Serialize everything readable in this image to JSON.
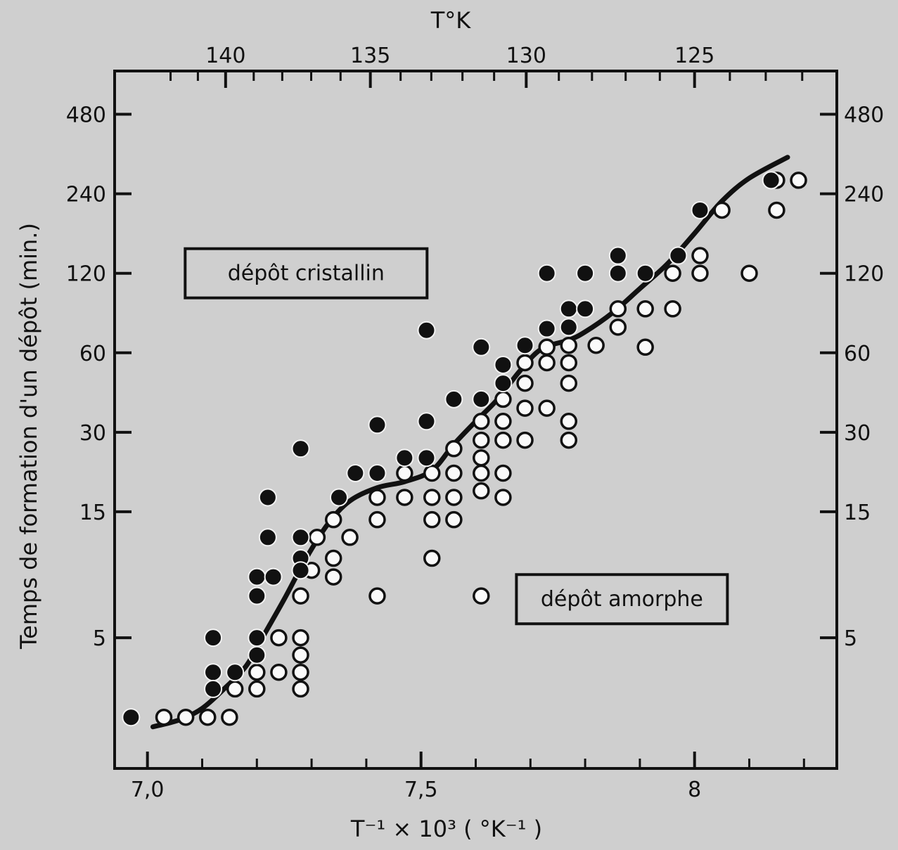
{
  "chart_data": {
    "type": "scatter",
    "x_scale": "linear",
    "y_scale": "log",
    "xlabel": "T⁻¹ × 10³ ( °K⁻¹ )",
    "ylabel": "Temps de formation d'un dépôt  (min.)",
    "top_label": "T°K",
    "xlim": [
      6.94,
      8.26
    ],
    "ylim": [
      1.6,
      700
    ],
    "x_ticks": [
      {
        "v": 7.0,
        "label": "7,0"
      },
      {
        "v": 7.5,
        "label": "7,5"
      },
      {
        "v": 8.0,
        "label": "8"
      }
    ],
    "x_minor_ticks": [
      7.1,
      7.2,
      7.3,
      7.4,
      7.6,
      7.7,
      7.8,
      7.9,
      8.1,
      8.2
    ],
    "top_ticks": [
      {
        "v": 140,
        "label": "140"
      },
      {
        "v": 135,
        "label": "135"
      },
      {
        "v": 130,
        "label": "130"
      },
      {
        "v": 125,
        "label": "125"
      }
    ],
    "y_ticks": [
      {
        "v": 480,
        "label": "480"
      },
      {
        "v": 240,
        "label": "240"
      },
      {
        "v": 120,
        "label": "120"
      },
      {
        "v": 60,
        "label": "60"
      },
      {
        "v": 30,
        "label": "30"
      },
      {
        "v": 15,
        "label": "15"
      },
      {
        "v": 5,
        "label": "5"
      }
    ],
    "annotations": [
      {
        "text": "dépôt cristallin",
        "x": 7.29,
        "y": 120
      },
      {
        "text": "dépôt amorphe",
        "x": 8.06,
        "y": 7
      }
    ],
    "grid": false,
    "series": [
      {
        "marker": "filled",
        "points": [
          [
            6.97,
            2.5
          ],
          [
            7.12,
            5.0
          ],
          [
            7.12,
            3.7
          ],
          [
            7.12,
            3.2
          ],
          [
            7.16,
            3.7
          ],
          [
            7.2,
            8.5
          ],
          [
            7.2,
            7.2
          ],
          [
            7.2,
            5.0
          ],
          [
            7.2,
            4.3
          ],
          [
            7.22,
            17
          ],
          [
            7.22,
            12
          ],
          [
            7.23,
            8.5
          ],
          [
            7.28,
            26
          ],
          [
            7.28,
            12
          ],
          [
            7.28,
            10
          ],
          [
            7.28,
            9.0
          ],
          [
            7.35,
            17
          ],
          [
            7.38,
            21
          ],
          [
            7.42,
            32
          ],
          [
            7.42,
            21
          ],
          [
            7.47,
            24
          ],
          [
            7.51,
            73
          ],
          [
            7.51,
            33
          ],
          [
            7.51,
            24
          ],
          [
            7.56,
            40
          ],
          [
            7.61,
            63
          ],
          [
            7.61,
            40
          ],
          [
            7.65,
            54
          ],
          [
            7.65,
            46
          ],
          [
            7.69,
            64
          ],
          [
            7.73,
            120
          ],
          [
            7.73,
            74
          ],
          [
            7.77,
            88
          ],
          [
            7.77,
            75
          ],
          [
            7.8,
            88
          ],
          [
            7.8,
            120
          ],
          [
            7.86,
            140
          ],
          [
            7.86,
            120
          ],
          [
            7.91,
            120
          ],
          [
            7.97,
            140
          ],
          [
            8.01,
            208
          ],
          [
            8.14,
            270
          ]
        ]
      },
      {
        "marker": "open",
        "points": [
          [
            7.03,
            2.5
          ],
          [
            7.07,
            2.5
          ],
          [
            7.11,
            2.5
          ],
          [
            7.15,
            2.5
          ],
          [
            7.16,
            3.2
          ],
          [
            7.2,
            3.2
          ],
          [
            7.2,
            3.7
          ],
          [
            7.24,
            5.0
          ],
          [
            7.24,
            3.7
          ],
          [
            7.28,
            5.0
          ],
          [
            7.28,
            4.3
          ],
          [
            7.28,
            3.7
          ],
          [
            7.28,
            3.2
          ],
          [
            7.28,
            7.2
          ],
          [
            7.31,
            12
          ],
          [
            7.3,
            9.0
          ],
          [
            7.34,
            14
          ],
          [
            7.34,
            10
          ],
          [
            7.34,
            8.5
          ],
          [
            7.37,
            12
          ],
          [
            7.42,
            17
          ],
          [
            7.42,
            14
          ],
          [
            7.42,
            7.2
          ],
          [
            7.47,
            21
          ],
          [
            7.47,
            17
          ],
          [
            7.52,
            21
          ],
          [
            7.52,
            17
          ],
          [
            7.52,
            14
          ],
          [
            7.52,
            10
          ],
          [
            7.56,
            21
          ],
          [
            7.56,
            17
          ],
          [
            7.56,
            14
          ],
          [
            7.56,
            26
          ],
          [
            7.61,
            21
          ],
          [
            7.61,
            18
          ],
          [
            7.61,
            24
          ],
          [
            7.61,
            28
          ],
          [
            7.61,
            33
          ],
          [
            7.61,
            7.2
          ],
          [
            7.65,
            21
          ],
          [
            7.65,
            17
          ],
          [
            7.65,
            28
          ],
          [
            7.65,
            33
          ],
          [
            7.65,
            40
          ],
          [
            7.69,
            55
          ],
          [
            7.69,
            46
          ],
          [
            7.69,
            37
          ],
          [
            7.69,
            28
          ],
          [
            7.73,
            63
          ],
          [
            7.73,
            55
          ],
          [
            7.73,
            37
          ],
          [
            7.77,
            55
          ],
          [
            7.77,
            46
          ],
          [
            7.77,
            33
          ],
          [
            7.77,
            28
          ],
          [
            7.77,
            64
          ],
          [
            7.82,
            64
          ],
          [
            7.86,
            75
          ],
          [
            7.86,
            88
          ],
          [
            7.91,
            88
          ],
          [
            7.91,
            63
          ],
          [
            7.96,
            120
          ],
          [
            7.96,
            88
          ],
          [
            8.01,
            140
          ],
          [
            8.01,
            120
          ],
          [
            8.05,
            208
          ],
          [
            8.1,
            120
          ],
          [
            8.15,
            270
          ],
          [
            8.15,
            208
          ],
          [
            8.19,
            270
          ]
        ]
      }
    ],
    "fit_curve": [
      [
        7.01,
        2.3
      ],
      [
        7.06,
        2.45
      ],
      [
        7.1,
        2.7
      ],
      [
        7.14,
        3.2
      ],
      [
        7.18,
        3.9
      ],
      [
        7.21,
        5.0
      ],
      [
        7.25,
        7.0
      ],
      [
        7.29,
        10
      ],
      [
        7.33,
        13.5
      ],
      [
        7.37,
        16.5
      ],
      [
        7.42,
        18.5
      ],
      [
        7.47,
        19.5
      ],
      [
        7.52,
        21.5
      ],
      [
        7.56,
        27
      ],
      [
        7.6,
        33
      ],
      [
        7.64,
        40
      ],
      [
        7.68,
        51
      ],
      [
        7.72,
        62
      ],
      [
        7.77,
        67
      ],
      [
        7.8,
        72
      ],
      [
        7.85,
        85
      ],
      [
        7.9,
        105
      ],
      [
        7.95,
        130
      ],
      [
        8.0,
        170
      ],
      [
        8.05,
        225
      ],
      [
        8.1,
        275
      ],
      [
        8.17,
        330
      ]
    ]
  }
}
